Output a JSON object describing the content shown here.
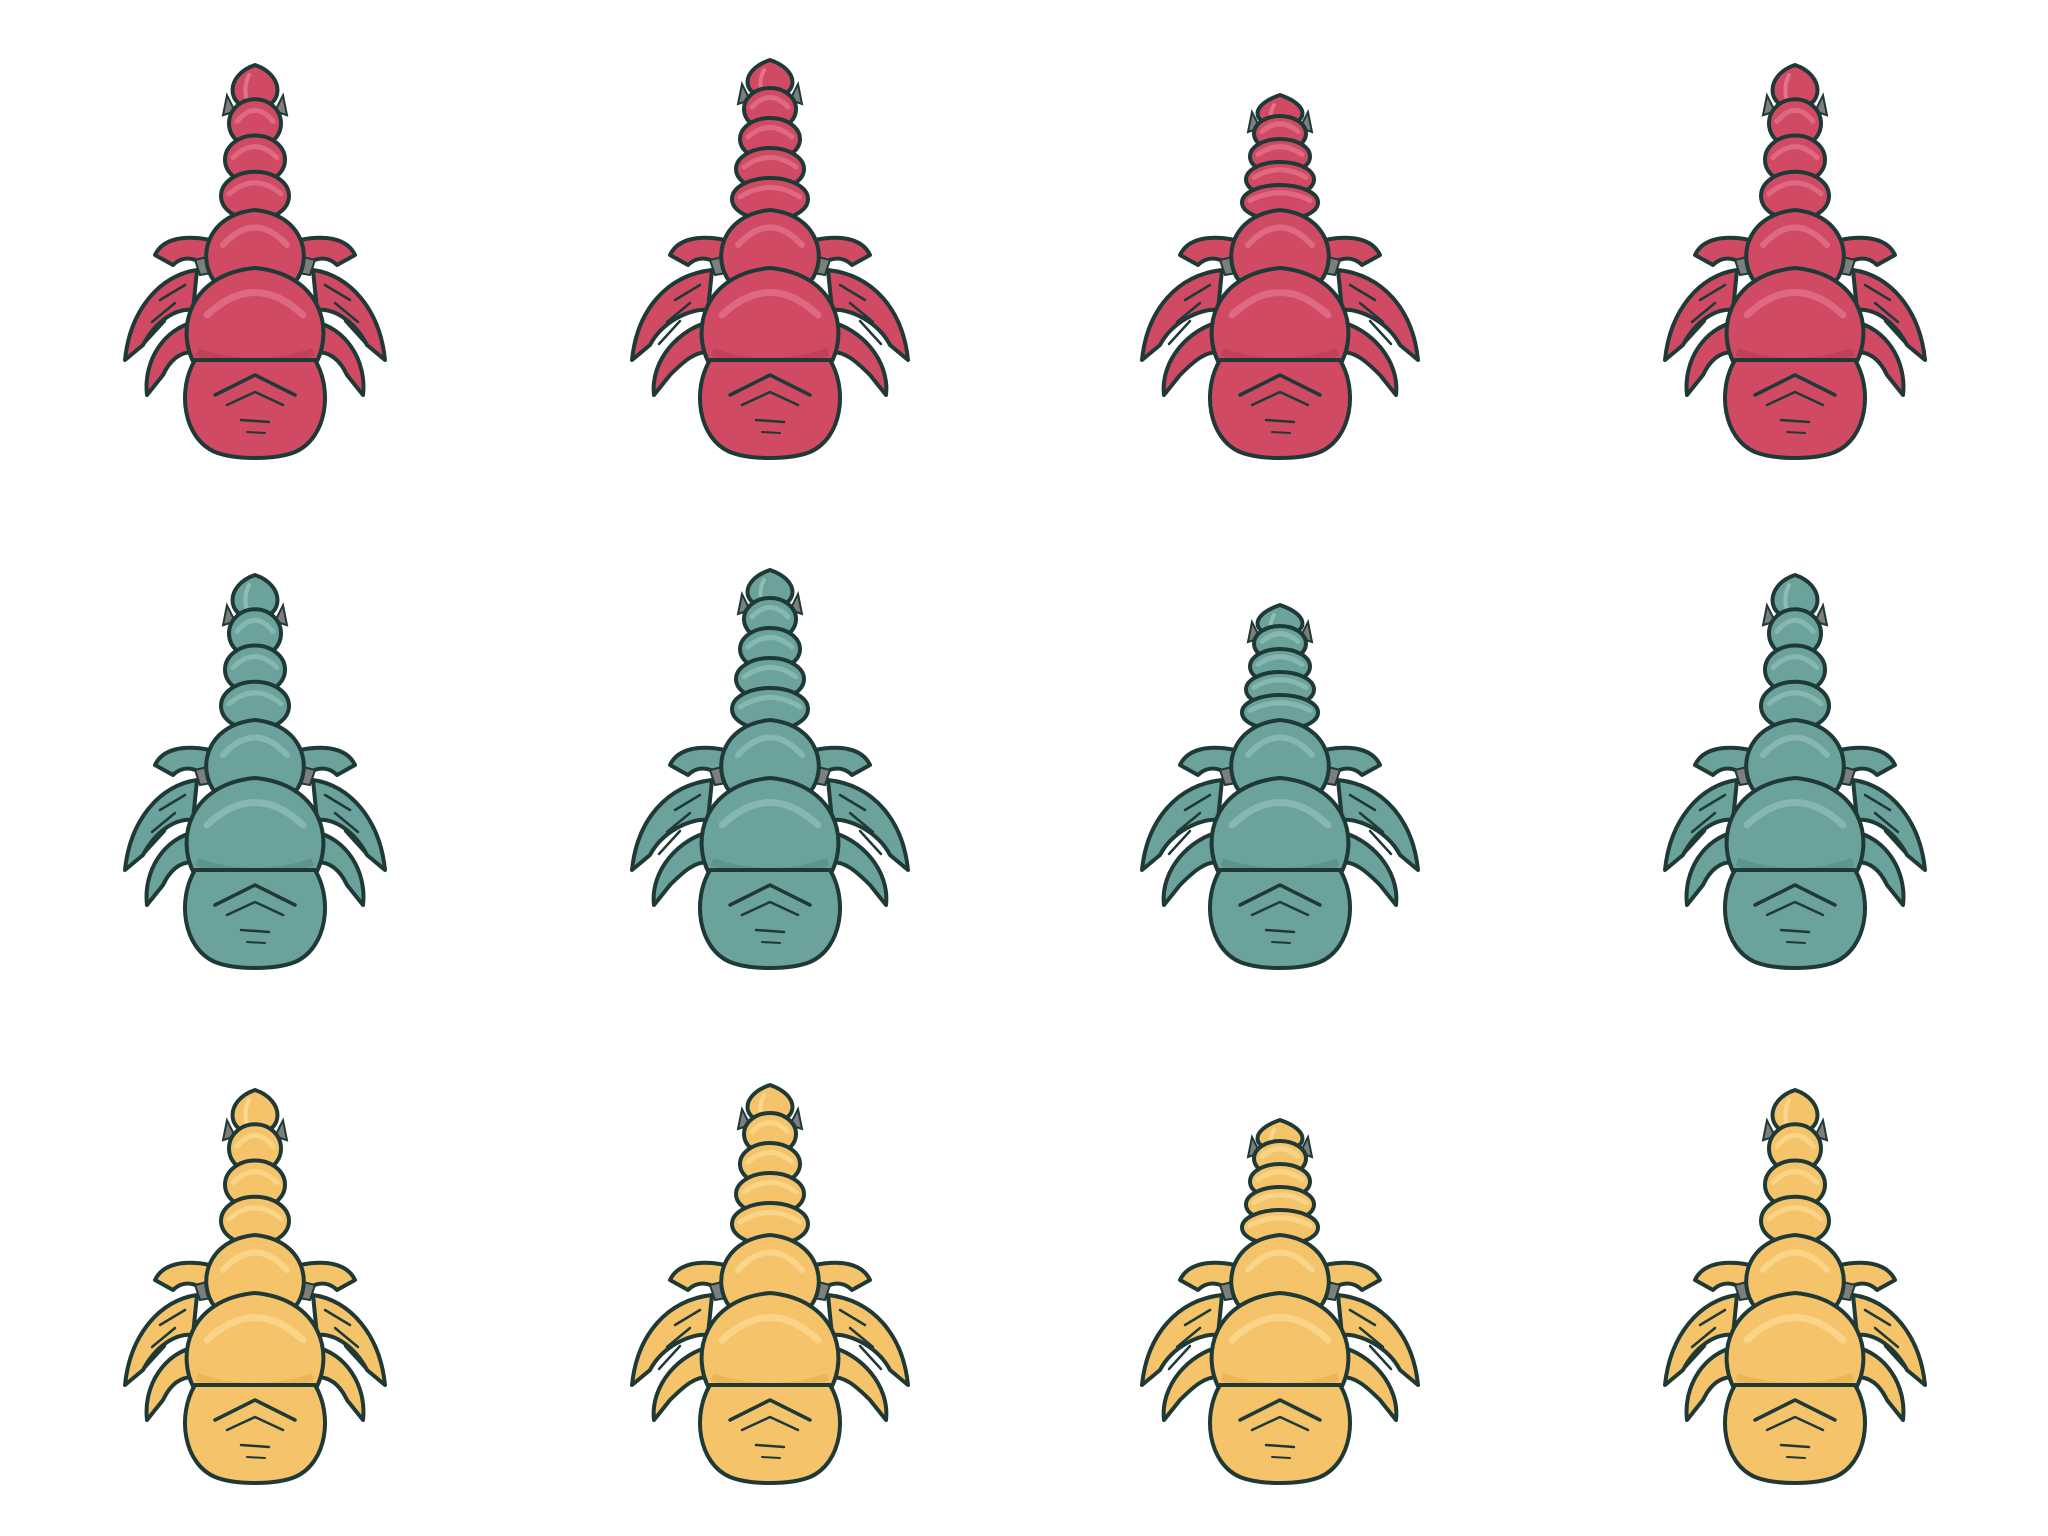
{
  "sprite_sheet": {
    "layout": {
      "rows": 3,
      "columns": 4
    },
    "outline_color": "#1f3a36",
    "shade_color": "#7d7f7e",
    "color_variants": [
      {
        "row": 1,
        "body_color": "#d04a64",
        "highlight_color": "#e3718a",
        "shadow_color": "#b53a52"
      },
      {
        "row": 2,
        "body_color": "#6ba29c",
        "highlight_color": "#8ebdb6",
        "shadow_color": "#558a84"
      },
      {
        "row": 3,
        "body_color": "#f5c46a",
        "highlight_color": "#fbd88e",
        "shadow_color": "#e6ad4a"
      }
    ],
    "animation_frames": [
      {
        "frame": 1,
        "tail_segments": 4
      },
      {
        "frame": 2,
        "tail_segments": 5
      },
      {
        "frame": 3,
        "tail_segments": 5
      },
      {
        "frame": 4,
        "tail_segments": 4
      }
    ],
    "icon": "scorpion-icon",
    "frame_count": 12
  }
}
